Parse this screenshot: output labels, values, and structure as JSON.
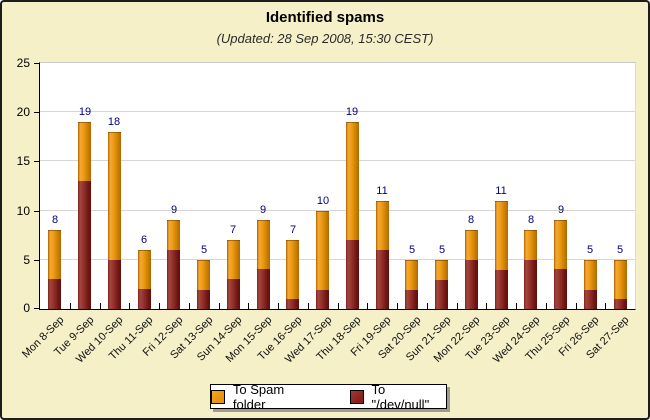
{
  "frame": {
    "title": "Identified spams",
    "subtitle": "(Updated: 28 Sep 2008, 15:30 CEST)"
  },
  "legend": {
    "items": [
      {
        "label": "To Spam folder",
        "color": "#e8940a"
      },
      {
        "label": "To \"/dev/null\"",
        "color": "#8b1f1a"
      }
    ]
  },
  "chart_data": {
    "type": "bar",
    "stacked": true,
    "title": "Identified spams",
    "subtitle": "(Updated: 28 Sep 2008, 15:30 CEST)",
    "categories": [
      "Mon 8-Sep",
      "Tue 9-Sep",
      "Wed 10-Sep",
      "Thu 11-Sep",
      "Fri 12-Sep",
      "Sat 13-Sep",
      "Sun 14-Sep",
      "Mon 15-Sep",
      "Tue 16-Sep",
      "Wed 17-Sep",
      "Thu 18-Sep",
      "Fri 19-Sep",
      "Sat 20-Sep",
      "Sun 21-Sep",
      "Mon 22-Sep",
      "Tue 23-Sep",
      "Wed 24-Sep",
      "Thu 25-Sep",
      "Fri 26-Sep",
      "Sat 27-Sep"
    ],
    "series": [
      {
        "name": "To \"/dev/null\"",
        "color": "#8b1f1a",
        "values": [
          3,
          13,
          5,
          2,
          6,
          2,
          3,
          4,
          1,
          2,
          7,
          6,
          2,
          3,
          5,
          4,
          5,
          4,
          2,
          1
        ]
      },
      {
        "name": "To Spam folder",
        "color": "#e8940a",
        "values": [
          5,
          6,
          13,
          4,
          3,
          3,
          4,
          5,
          6,
          8,
          12,
          5,
          3,
          2,
          3,
          7,
          3,
          5,
          3,
          4
        ]
      }
    ],
    "totals": [
      8,
      19,
      18,
      6,
      9,
      5,
      7,
      9,
      7,
      10,
      19,
      11,
      5,
      5,
      8,
      11,
      8,
      9,
      5,
      5
    ],
    "xlabel": "",
    "ylabel": "",
    "ylim": [
      0,
      25
    ],
    "yticks": [
      0,
      5,
      10,
      15,
      20,
      25
    ],
    "grid": true,
    "legend_position": "bottom",
    "value_label_color": "#000080",
    "x_label_rotation": -45
  }
}
